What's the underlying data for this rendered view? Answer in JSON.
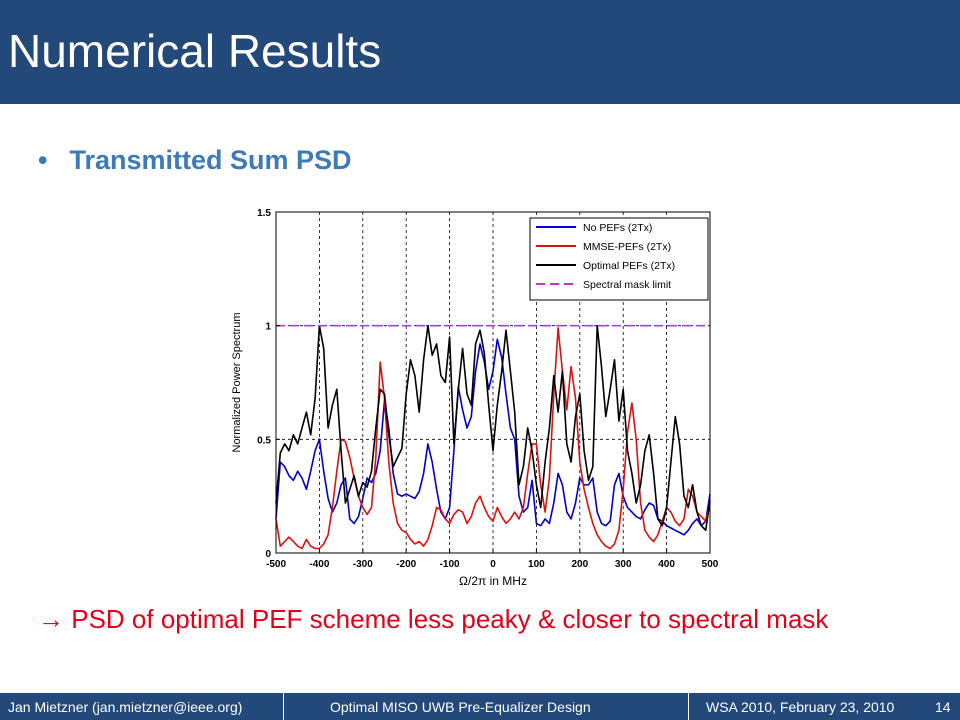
{
  "slide": {
    "title": "Numerical Results",
    "bullet_marker": "•",
    "bullet": "Transmitted Sum PSD",
    "conclusion_arrow": "→",
    "conclusion": "PSD of optimal PEF scheme less peaky & closer to spectral mask"
  },
  "footer": {
    "author": "Jan Mietzner (jan.mietzner@ieee.org)",
    "talk_title": "Optimal MISO UWB Pre-Equalizer Design",
    "venue": "WSA 2010, February 23, 2010",
    "page": "14"
  },
  "colors": {
    "title_bar": "#23497a",
    "bullet_text": "#3d7ab8",
    "conclusion_text": "#e2001a",
    "no_pef": "#0000cc",
    "mmse_pef": "#dd1111",
    "optimal_pef": "#000000",
    "mask": "#cc33cc"
  },
  "chart_data": {
    "type": "line",
    "xlabel": "Ω/2π in MHz",
    "ylabel": "Normalized Power Spectrum",
    "xlim": [
      -500,
      500
    ],
    "ylim": [
      0,
      1.5
    ],
    "xticks": [
      "-500",
      "-400",
      "-300",
      "-200",
      "-100",
      "0",
      "100",
      "200",
      "300",
      "400",
      "500"
    ],
    "yticks": [
      "0",
      "0.5",
      "1",
      "1.5"
    ],
    "grid": true,
    "legend_position": "top-right",
    "series": [
      {
        "name": "No PEFs (2Tx)",
        "color": "#0000cc",
        "dash": "solid",
        "x": [
          -500,
          -490,
          -480,
          -470,
          -460,
          -450,
          -440,
          -430,
          -420,
          -410,
          -400,
          -390,
          -380,
          -370,
          -360,
          -350,
          -340,
          -330,
          -320,
          -310,
          -300,
          -290,
          -280,
          -270,
          -260,
          -250,
          -240,
          -230,
          -220,
          -210,
          -200,
          -190,
          -180,
          -170,
          -160,
          -150,
          -140,
          -130,
          -120,
          -110,
          -100,
          -90,
          -80,
          -70,
          -60,
          -50,
          -40,
          -30,
          -20,
          -10,
          0,
          10,
          20,
          30,
          40,
          50,
          60,
          70,
          80,
          90,
          100,
          110,
          120,
          130,
          140,
          150,
          160,
          170,
          180,
          190,
          200,
          210,
          220,
          230,
          240,
          250,
          260,
          270,
          280,
          290,
          300,
          310,
          320,
          330,
          340,
          350,
          360,
          370,
          380,
          390,
          400,
          410,
          420,
          430,
          440,
          450,
          460,
          470,
          480,
          490,
          500
        ],
        "y": [
          0.15,
          0.4,
          0.38,
          0.34,
          0.32,
          0.36,
          0.33,
          0.28,
          0.36,
          0.45,
          0.5,
          0.36,
          0.24,
          0.18,
          0.22,
          0.3,
          0.33,
          0.15,
          0.13,
          0.16,
          0.24,
          0.33,
          0.31,
          0.35,
          0.45,
          0.67,
          0.55,
          0.35,
          0.26,
          0.25,
          0.26,
          0.25,
          0.24,
          0.27,
          0.35,
          0.48,
          0.4,
          0.28,
          0.18,
          0.15,
          0.2,
          0.45,
          0.73,
          0.63,
          0.55,
          0.6,
          0.8,
          0.92,
          0.84,
          0.72,
          0.8,
          0.94,
          0.86,
          0.7,
          0.55,
          0.5,
          0.25,
          0.18,
          0.2,
          0.32,
          0.13,
          0.12,
          0.15,
          0.13,
          0.22,
          0.35,
          0.3,
          0.18,
          0.15,
          0.22,
          0.33,
          0.3,
          0.3,
          0.33,
          0.18,
          0.13,
          0.12,
          0.14,
          0.3,
          0.35,
          0.25,
          0.2,
          0.18,
          0.16,
          0.15,
          0.19,
          0.22,
          0.21,
          0.15,
          0.14,
          0.12,
          0.11,
          0.1,
          0.09,
          0.08,
          0.1,
          0.13,
          0.15,
          0.12,
          0.14,
          0.26
        ]
      },
      {
        "name": "MMSE-PEFs (2Tx)",
        "color": "#dd1111",
        "dash": "solid",
        "x": [
          -500,
          -490,
          -480,
          -470,
          -460,
          -450,
          -440,
          -430,
          -420,
          -410,
          -400,
          -390,
          -380,
          -370,
          -360,
          -350,
          -340,
          -330,
          -320,
          -310,
          -300,
          -290,
          -280,
          -270,
          -260,
          -250,
          -240,
          -230,
          -220,
          -210,
          -200,
          -190,
          -180,
          -170,
          -160,
          -150,
          -140,
          -130,
          -120,
          -110,
          -100,
          -90,
          -80,
          -70,
          -60,
          -50,
          -40,
          -30,
          -20,
          -10,
          0,
          10,
          20,
          30,
          40,
          50,
          60,
          70,
          80,
          90,
          100,
          110,
          120,
          130,
          140,
          150,
          160,
          170,
          180,
          190,
          200,
          210,
          220,
          230,
          240,
          250,
          260,
          270,
          280,
          290,
          300,
          310,
          320,
          330,
          340,
          350,
          360,
          370,
          380,
          390,
          400,
          410,
          420,
          430,
          440,
          450,
          460,
          470,
          480,
          490,
          500
        ],
        "y": [
          0.15,
          0.03,
          0.05,
          0.07,
          0.05,
          0.03,
          0.02,
          0.06,
          0.03,
          0.02,
          0.02,
          0.04,
          0.08,
          0.2,
          0.36,
          0.5,
          0.49,
          0.42,
          0.33,
          0.25,
          0.2,
          0.17,
          0.2,
          0.42,
          0.84,
          0.68,
          0.4,
          0.22,
          0.13,
          0.1,
          0.09,
          0.06,
          0.04,
          0.05,
          0.03,
          0.06,
          0.12,
          0.2,
          0.19,
          0.15,
          0.13,
          0.17,
          0.19,
          0.18,
          0.13,
          0.16,
          0.22,
          0.25,
          0.2,
          0.16,
          0.14,
          0.2,
          0.16,
          0.13,
          0.15,
          0.18,
          0.15,
          0.2,
          0.35,
          0.48,
          0.48,
          0.3,
          0.18,
          0.33,
          0.7,
          0.99,
          0.8,
          0.63,
          0.82,
          0.68,
          0.4,
          0.28,
          0.2,
          0.13,
          0.08,
          0.05,
          0.03,
          0.02,
          0.04,
          0.1,
          0.28,
          0.53,
          0.66,
          0.5,
          0.22,
          0.1,
          0.07,
          0.05,
          0.08,
          0.14,
          0.2,
          0.18,
          0.14,
          0.12,
          0.15,
          0.28,
          0.25,
          0.18,
          0.16,
          0.14,
          0.22
        ]
      },
      {
        "name": "Optimal PEFs (2Tx)",
        "color": "#000000",
        "dash": "solid",
        "x": [
          -500,
          -490,
          -480,
          -470,
          -460,
          -450,
          -440,
          -430,
          -420,
          -410,
          -400,
          -390,
          -380,
          -370,
          -360,
          -350,
          -340,
          -330,
          -320,
          -310,
          -300,
          -290,
          -280,
          -270,
          -260,
          -250,
          -240,
          -230,
          -220,
          -210,
          -200,
          -190,
          -180,
          -170,
          -160,
          -150,
          -140,
          -130,
          -120,
          -110,
          -100,
          -90,
          -80,
          -70,
          -60,
          -50,
          -40,
          -30,
          -20,
          -10,
          0,
          10,
          20,
          30,
          40,
          50,
          60,
          70,
          80,
          90,
          100,
          110,
          120,
          130,
          140,
          150,
          160,
          170,
          180,
          190,
          200,
          210,
          220,
          230,
          240,
          250,
          260,
          270,
          280,
          290,
          300,
          310,
          320,
          330,
          340,
          350,
          360,
          370,
          380,
          390,
          400,
          410,
          420,
          430,
          440,
          450,
          460,
          470,
          480,
          490,
          500
        ],
        "y": [
          0.22,
          0.44,
          0.48,
          0.45,
          0.52,
          0.48,
          0.55,
          0.62,
          0.52,
          0.68,
          1.0,
          0.9,
          0.55,
          0.65,
          0.72,
          0.45,
          0.22,
          0.28,
          0.34,
          0.25,
          0.31,
          0.29,
          0.36,
          0.55,
          0.72,
          0.7,
          0.52,
          0.38,
          0.42,
          0.46,
          0.7,
          0.85,
          0.78,
          0.62,
          0.85,
          1.0,
          0.87,
          0.92,
          0.78,
          0.75,
          0.95,
          0.48,
          0.72,
          0.9,
          0.7,
          0.65,
          0.92,
          0.98,
          0.88,
          0.65,
          0.45,
          0.65,
          0.8,
          0.98,
          0.8,
          0.62,
          0.3,
          0.38,
          0.55,
          0.45,
          0.3,
          0.2,
          0.4,
          0.55,
          0.78,
          0.62,
          0.8,
          0.48,
          0.4,
          0.6,
          0.7,
          0.45,
          0.32,
          0.38,
          1.0,
          0.82,
          0.6,
          0.72,
          0.85,
          0.58,
          0.72,
          0.45,
          0.35,
          0.22,
          0.3,
          0.45,
          0.52,
          0.35,
          0.15,
          0.12,
          0.2,
          0.4,
          0.6,
          0.48,
          0.25,
          0.2,
          0.3,
          0.18,
          0.12,
          0.1,
          0.23
        ]
      },
      {
        "name": "Spectral mask limit",
        "color": "#cc33cc",
        "dash": "dashed",
        "x": [
          -500,
          500
        ],
        "y": [
          1,
          1
        ]
      }
    ]
  }
}
